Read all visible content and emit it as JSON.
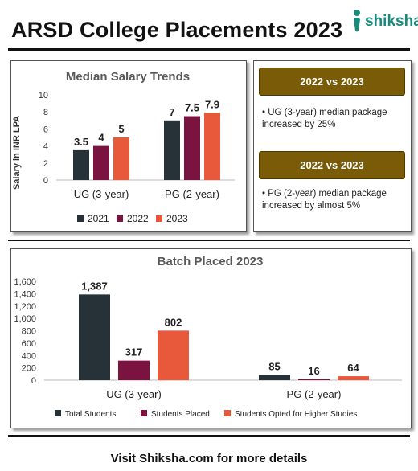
{
  "header": {
    "title": "ARSD College Placements 2023",
    "logo_text": "shiksha"
  },
  "colors": {
    "total": "#263238",
    "placed": "#7a1340",
    "higher": "#e8593c",
    "y2021": "#263238",
    "y2022": "#7a1340",
    "y2023": "#e8593c",
    "callout": "#7a5c08"
  },
  "callouts": [
    {
      "heading": "2022 vs 2023",
      "text": "UG (3-year) median package increased by 25%"
    },
    {
      "heading": "2022 vs 2023",
      "text": "PG (2-year) median package increased by almost 5%"
    }
  ],
  "footer": "Visit Shiksha.com for more details",
  "chart_data": [
    {
      "type": "bar",
      "title": "Median Salary Trends",
      "ylabel": "Salary in INR LPA",
      "xlabel": "",
      "categories": [
        "UG (3-year)",
        "PG (2-year)"
      ],
      "series": [
        {
          "name": "2021",
          "values": [
            3.5,
            7
          ]
        },
        {
          "name": "2022",
          "values": [
            4,
            7.5
          ]
        },
        {
          "name": "2023",
          "values": [
            5,
            7.9
          ]
        }
      ],
      "ylim": [
        0,
        10
      ],
      "yticks": [
        "0",
        "2",
        "4",
        "6",
        "8",
        "10"
      ],
      "legend": "bottom",
      "grid": false
    },
    {
      "type": "bar",
      "title": "Batch Placed 2023",
      "xlabel": "",
      "ylabel": "",
      "categories": [
        "UG (3-year)",
        "PG (2-year)"
      ],
      "series": [
        {
          "name": "Total Students",
          "values": [
            1387,
            85
          ],
          "labels": [
            "1,387",
            "85"
          ]
        },
        {
          "name": "Students Placed",
          "values": [
            317,
            16
          ],
          "labels": [
            "317",
            "16"
          ]
        },
        {
          "name": "Students Opted for Higher Studies",
          "values": [
            802,
            64
          ],
          "labels": [
            "802",
            "64"
          ]
        }
      ],
      "ylim": [
        0,
        1600
      ],
      "yticks": [
        "0",
        "200",
        "400",
        "600",
        "800",
        "1,000",
        "1,200",
        "1,400",
        "1,600"
      ],
      "legend": "bottom",
      "grid": false
    }
  ]
}
